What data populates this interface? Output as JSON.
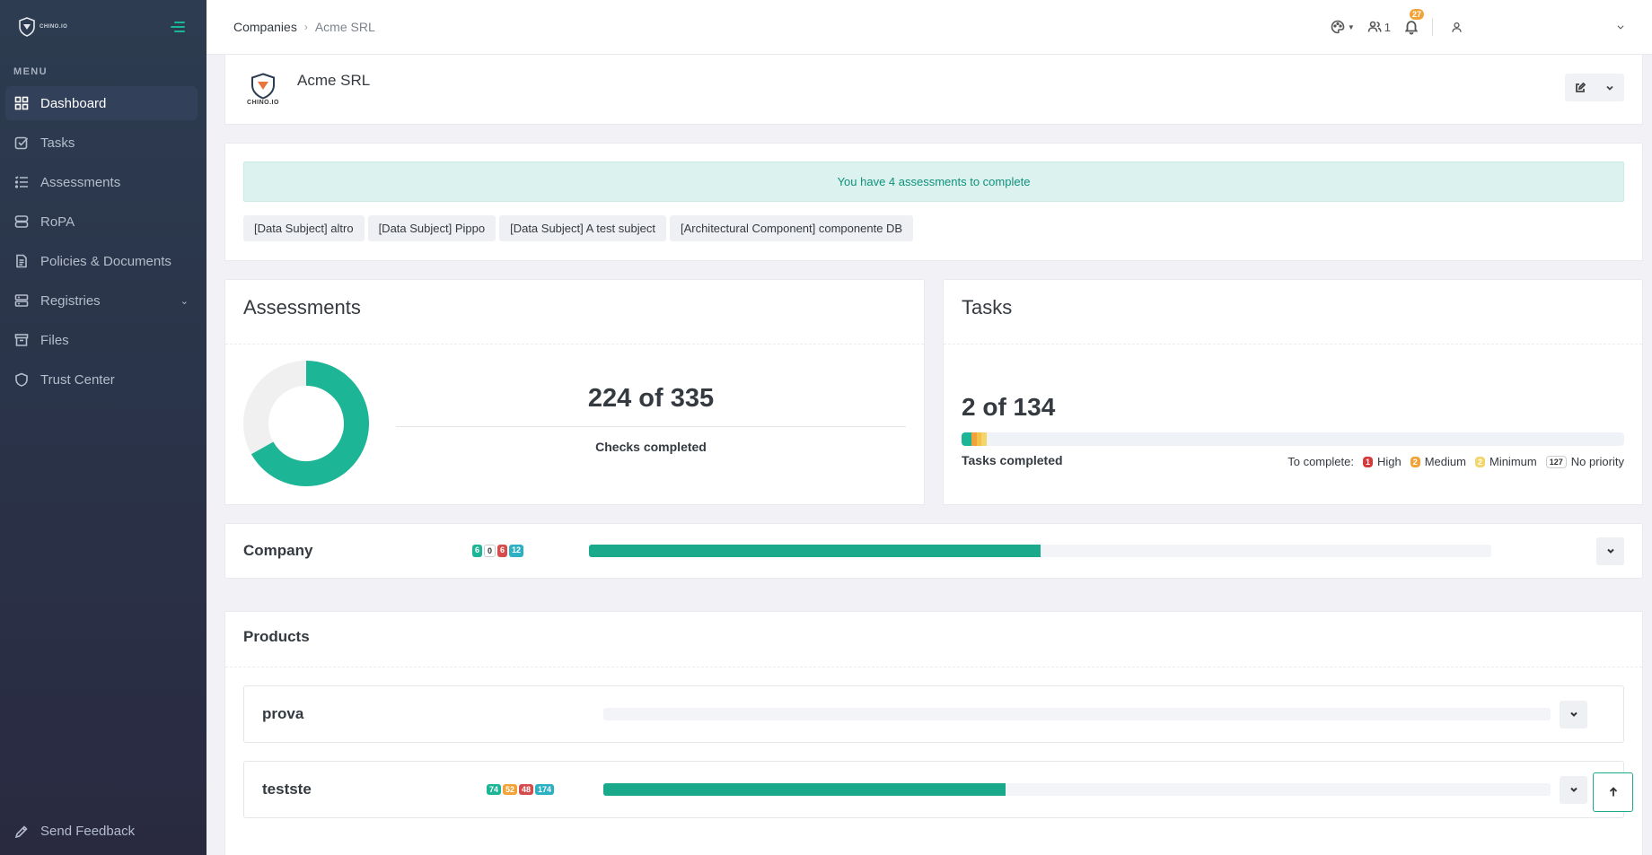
{
  "app": {
    "logo_text": "CHINO.IO",
    "menu_title": "MENU"
  },
  "sidebar": {
    "items": [
      {
        "label": "Dashboard",
        "icon": "dashboard-icon",
        "active": true
      },
      {
        "label": "Tasks",
        "icon": "tasks-icon"
      },
      {
        "label": "Assessments",
        "icon": "list-icon"
      },
      {
        "label": "RoPA",
        "icon": "database-icon"
      },
      {
        "label": "Policies & Documents",
        "icon": "document-icon"
      },
      {
        "label": "Registries",
        "icon": "registry-icon",
        "has_children": true
      },
      {
        "label": "Files",
        "icon": "archive-icon"
      },
      {
        "label": "Trust Center",
        "icon": "shield-icon"
      }
    ],
    "feedback_label": "Send Feedback"
  },
  "topbar": {
    "breadcrumb": [
      "Companies",
      "Acme SRL"
    ],
    "users_count": "1",
    "notifications_count": "27"
  },
  "company": {
    "name": "Acme SRL",
    "logo_text": "CHINO.IO"
  },
  "assessments_alert": {
    "message": "You have 4 assessments to complete",
    "chips": [
      "[Data Subject] altro",
      "[Data Subject] Pippo",
      "[Data Subject] A test subject",
      "[Architectural Component] componente DB"
    ]
  },
  "assessments_card": {
    "title": "Assessments",
    "summary": "224 of 335",
    "label": "Checks completed",
    "completed": 224,
    "total": 335
  },
  "tasks_card": {
    "title": "Tasks",
    "summary": "2 of 134",
    "label": "Tasks completed",
    "to_complete_label": "To complete:",
    "legend": [
      {
        "count": "1",
        "label": "High",
        "color": "#d63939"
      },
      {
        "count": "2",
        "label": "Medium",
        "color": "#f1a33a"
      },
      {
        "count": "2",
        "label": "Minimum",
        "color": "#f4d56a"
      },
      {
        "count": "127",
        "label": "No priority",
        "color": "#ffffff"
      }
    ],
    "bar_segments": [
      {
        "fraction": 0.0149,
        "color": "#1cb596"
      },
      {
        "fraction": 0.0075,
        "color": "#f1a33a"
      },
      {
        "fraction": 0.0075,
        "color": "#f5c04a"
      },
      {
        "fraction": 0.0075,
        "color": "#f4d56a"
      }
    ]
  },
  "company_row": {
    "title": "Company",
    "badges": [
      {
        "value": "6",
        "color": "#1cb596"
      },
      {
        "value": "0",
        "color": "#ffffff"
      },
      {
        "value": "6",
        "color": "#d64b4b"
      },
      {
        "value": "12",
        "color": "#2bb0c4"
      }
    ],
    "progress": 0.5
  },
  "products": {
    "title": "Products",
    "items": [
      {
        "name": "prova",
        "badges": [],
        "progress": 0
      },
      {
        "name": "testste",
        "badges": [
          {
            "value": "74",
            "color": "#1cb596"
          },
          {
            "value": "52",
            "color": "#f1a33a"
          },
          {
            "value": "48",
            "color": "#d64b4b"
          },
          {
            "value": "174",
            "color": "#2bb0c4"
          }
        ],
        "progress": 0.425
      }
    ]
  }
}
